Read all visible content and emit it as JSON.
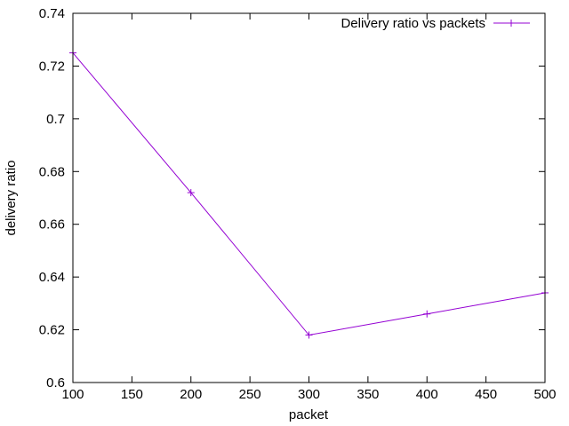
{
  "chart_data": {
    "type": "line",
    "xlabel": "packet",
    "ylabel": "delivery ratio",
    "xlim": [
      100,
      500
    ],
    "ylim": [
      0.6,
      0.74
    ],
    "x_ticks": [
      100,
      150,
      200,
      250,
      300,
      350,
      400,
      450,
      500
    ],
    "y_ticks": [
      0.6,
      0.62,
      0.64,
      0.66,
      0.68,
      0.7,
      0.72,
      0.74
    ],
    "x_tick_labels": [
      "100",
      "150",
      "200",
      "250",
      "300",
      "350",
      "400",
      "450",
      "500"
    ],
    "y_tick_labels": [
      "0.6",
      "0.62",
      "0.64",
      "0.66",
      "0.68",
      "0.7",
      "0.72",
      "0.74"
    ],
    "grid": false,
    "legend_position": "top-right",
    "series": [
      {
        "name": "Delivery ratio vs packets",
        "color": "#9400d3",
        "marker": "plus",
        "x": [
          100,
          200,
          300,
          400,
          500
        ],
        "y": [
          0.725,
          0.672,
          0.618,
          0.626,
          0.634
        ]
      }
    ]
  }
}
